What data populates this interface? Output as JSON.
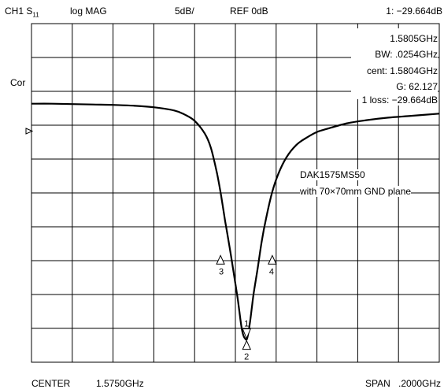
{
  "header": {
    "channel": "CH1",
    "param_base": "S",
    "param_sub": "11",
    "format": "log MAG",
    "scale": "5dB/",
    "ref": "REF 0dB",
    "marker_readout": "1:  −29.664dB"
  },
  "side_label": "Cor",
  "readout": {
    "freq": "1.5805GHz",
    "bw": "BW: .0254GHz",
    "cent": "cent: 1.5804GHz",
    "q": "G: 62.127",
    "loss": "1 loss: −29.664dB"
  },
  "annotation": {
    "line1": "DAK1575MS50",
    "line2": "with 70×70mm GND plane"
  },
  "footer": {
    "center": "CENTER",
    "center_value": "1.5750GHz",
    "span": "SPAN",
    "span_value": ".2000GHz"
  },
  "markers": [
    {
      "label": "1",
      "freq_ghz": 1.5805,
      "db": -29.7
    },
    {
      "label": "2",
      "freq_ghz": 1.5805,
      "db": -29.7
    },
    {
      "label": "3",
      "freq_ghz": 1.5677,
      "db": -19.0
    },
    {
      "label": "4",
      "freq_ghz": 1.5931,
      "db": -19.0
    }
  ],
  "chart_data": {
    "type": "line",
    "title": "",
    "xlabel": "",
    "ylabel": "",
    "xlim": [
      1.475,
      1.675
    ],
    "ylim": [
      -32.5,
      10
    ],
    "ref_db": 0,
    "grid": true,
    "series": [
      {
        "x": [
          1.475,
          1.485,
          1.495,
          1.505,
          1.515,
          1.525,
          1.535,
          1.545,
          1.55,
          1.555,
          1.56,
          1.563,
          1.566,
          1.568,
          1.57,
          1.572,
          1.574,
          1.576,
          1.577,
          1.578,
          1.579,
          1.58,
          1.5805,
          1.581,
          1.582,
          1.583,
          1.584,
          1.586,
          1.588,
          1.59,
          1.593,
          1.596,
          1.6,
          1.605,
          1.61,
          1.615,
          1.62,
          1.63,
          1.64,
          1.65,
          1.66,
          1.675
        ],
        "y": [
          -0.05,
          -0.05,
          -0.1,
          -0.15,
          -0.2,
          -0.3,
          -0.5,
          -0.9,
          -1.4,
          -2.2,
          -3.8,
          -5.6,
          -8.8,
          -11.6,
          -14.8,
          -17.8,
          -21.0,
          -24.3,
          -26.2,
          -28.1,
          -29.2,
          -29.6,
          -29.66,
          -29.3,
          -27.8,
          -25.8,
          -23.8,
          -20.6,
          -17.2,
          -14.5,
          -11.2,
          -8.9,
          -6.8,
          -5.2,
          -4.3,
          -3.6,
          -3.2,
          -2.5,
          -2.1,
          -1.8,
          -1.6,
          -1.3
        ]
      }
    ]
  }
}
